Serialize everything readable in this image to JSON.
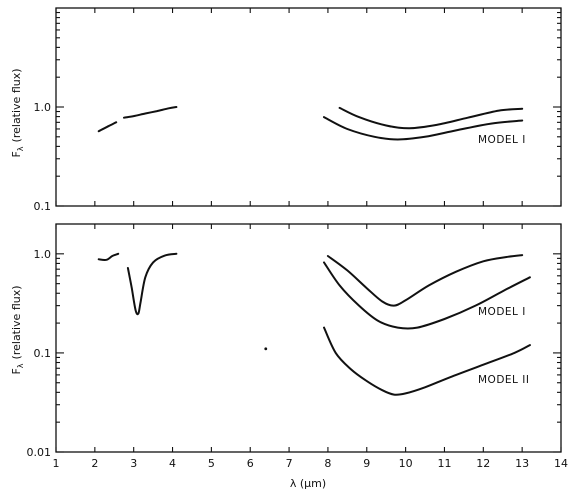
{
  "chart_data": [
    {
      "type": "line",
      "ylabel": "F_λ (relative flux)",
      "ylabel_main": "F",
      "ylabel_sub": "λ",
      "ylabel_rest": "(relative flux)",
      "yscale": "log",
      "ylim": [
        0.1,
        10
      ],
      "xlim": [
        1,
        14
      ],
      "yticks": [
        0.1,
        1.0
      ],
      "ytick_labels": [
        "0.1",
        "1.0"
      ],
      "series": [
        {
          "role": "observed",
          "x": [
            2.1,
            2.35,
            2.55
          ],
          "y": [
            0.57,
            0.64,
            0.7
          ]
        },
        {
          "role": "observed",
          "x": [
            2.75,
            3.0,
            3.3,
            3.6,
            3.9,
            4.1
          ],
          "y": [
            0.78,
            0.81,
            0.86,
            0.91,
            0.97,
            1.0
          ]
        },
        {
          "name": "MODEL I",
          "x": [
            8.3,
            8.8,
            9.5,
            10.1,
            10.8,
            11.6,
            12.4,
            13.0
          ],
          "y": [
            0.98,
            0.79,
            0.65,
            0.61,
            0.66,
            0.78,
            0.92,
            0.96
          ]
        },
        {
          "name": "MODEL I",
          "x": [
            7.9,
            8.5,
            9.2,
            9.8,
            10.5,
            11.3,
            12.2,
            13.0
          ],
          "y": [
            0.79,
            0.6,
            0.5,
            0.47,
            0.5,
            0.58,
            0.68,
            0.73
          ]
        }
      ],
      "annotations": [
        "MODEL I"
      ]
    },
    {
      "type": "line",
      "ylabel": "F_λ (relative flux)",
      "ylabel_main": "F",
      "ylabel_sub": "λ",
      "ylabel_rest": "(relative flux)",
      "xlabel": "λ (μm)",
      "yscale": "log",
      "ylim": [
        0.01,
        2
      ],
      "xlim": [
        1,
        14
      ],
      "xticks": [
        1,
        2,
        3,
        4,
        5,
        6,
        7,
        8,
        9,
        10,
        11,
        12,
        13,
        14
      ],
      "xtick_labels": [
        "1",
        "2",
        "3",
        "4",
        "5",
        "6",
        "7",
        "8",
        "9",
        "10",
        "11",
        "12",
        "13",
        "14"
      ],
      "yticks": [
        0.01,
        0.1,
        1.0
      ],
      "ytick_labels": [
        "0.01",
        "0.1",
        "1.0"
      ],
      "series": [
        {
          "role": "observed",
          "x": [
            2.1,
            2.3,
            2.45,
            2.6
          ],
          "y": [
            0.88,
            0.87,
            0.95,
            1.0
          ]
        },
        {
          "role": "observed",
          "x": [
            2.85,
            2.95,
            3.05,
            3.12,
            3.18,
            3.3,
            3.5,
            3.8,
            4.1
          ],
          "y": [
            0.72,
            0.45,
            0.27,
            0.25,
            0.33,
            0.58,
            0.82,
            0.96,
            1.0
          ]
        },
        {
          "name": "MODEL I",
          "x": [
            8.0,
            8.5,
            9.0,
            9.4,
            9.7,
            10.0,
            10.6,
            11.3,
            12.0,
            12.6,
            13.0
          ],
          "y": [
            0.95,
            0.68,
            0.45,
            0.33,
            0.3,
            0.34,
            0.48,
            0.66,
            0.84,
            0.93,
            0.97
          ]
        },
        {
          "name": "MODEL I",
          "x": [
            7.9,
            8.3,
            8.8,
            9.3,
            9.8,
            10.3,
            11.0,
            11.8,
            12.5,
            13.2
          ],
          "y": [
            0.82,
            0.48,
            0.3,
            0.21,
            0.18,
            0.18,
            0.22,
            0.3,
            0.42,
            0.58
          ]
        },
        {
          "name": "MODEL II",
          "x": [
            7.9,
            8.2,
            8.6,
            9.0,
            9.4,
            9.7,
            10.0,
            10.5,
            11.2,
            12.0,
            12.8,
            13.2
          ],
          "y": [
            0.18,
            0.1,
            0.068,
            0.052,
            0.042,
            0.038,
            0.039,
            0.045,
            0.058,
            0.076,
            0.1,
            0.12
          ]
        },
        {
          "role": "point",
          "x": [
            6.4
          ],
          "y": [
            0.11
          ]
        }
      ],
      "annotations": [
        "MODEL I",
        "MODEL II"
      ]
    }
  ]
}
